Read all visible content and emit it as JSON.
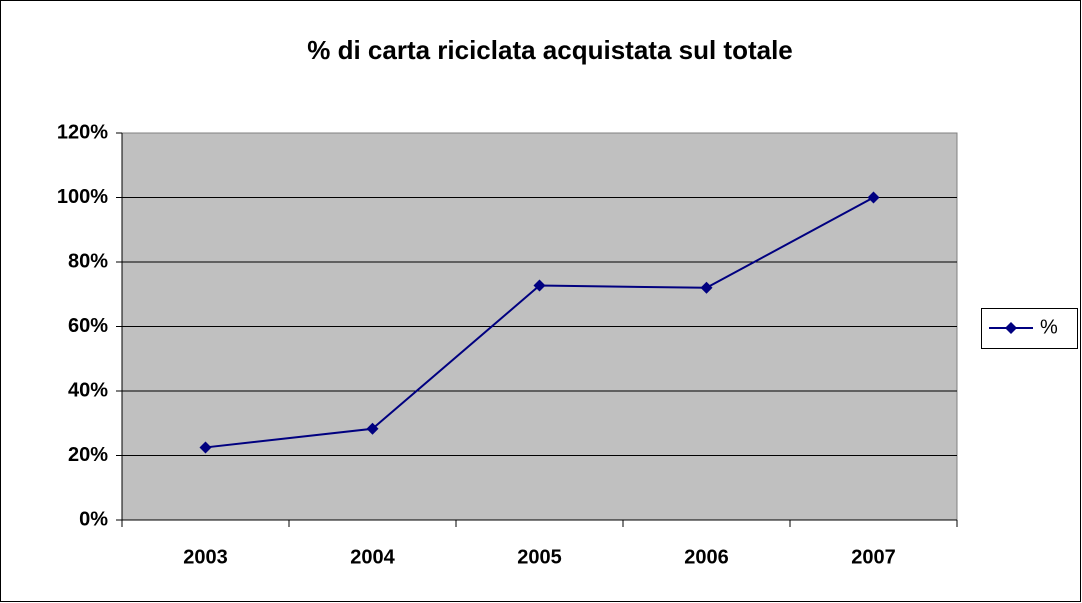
{
  "chart_data": {
    "type": "line",
    "title": "% di carta riciclata acquistata sul totale",
    "categories": [
      "2003",
      "2004",
      "2005",
      "2006",
      "2007"
    ],
    "series": [
      {
        "name": "%",
        "color": "#000080",
        "values": [
          22.5,
          28.3,
          72.7,
          72.0,
          100
        ]
      }
    ],
    "ylim": [
      0,
      120
    ],
    "yticks": [
      {
        "value": 0,
        "label": "0%"
      },
      {
        "value": 20,
        "label": "20%"
      },
      {
        "value": 40,
        "label": "40%"
      },
      {
        "value": 60,
        "label": "60%"
      },
      {
        "value": 80,
        "label": "80%"
      },
      {
        "value": 100,
        "label": "100%"
      },
      {
        "value": 120,
        "label": "120%"
      }
    ],
    "grid": true,
    "legend": "right"
  }
}
